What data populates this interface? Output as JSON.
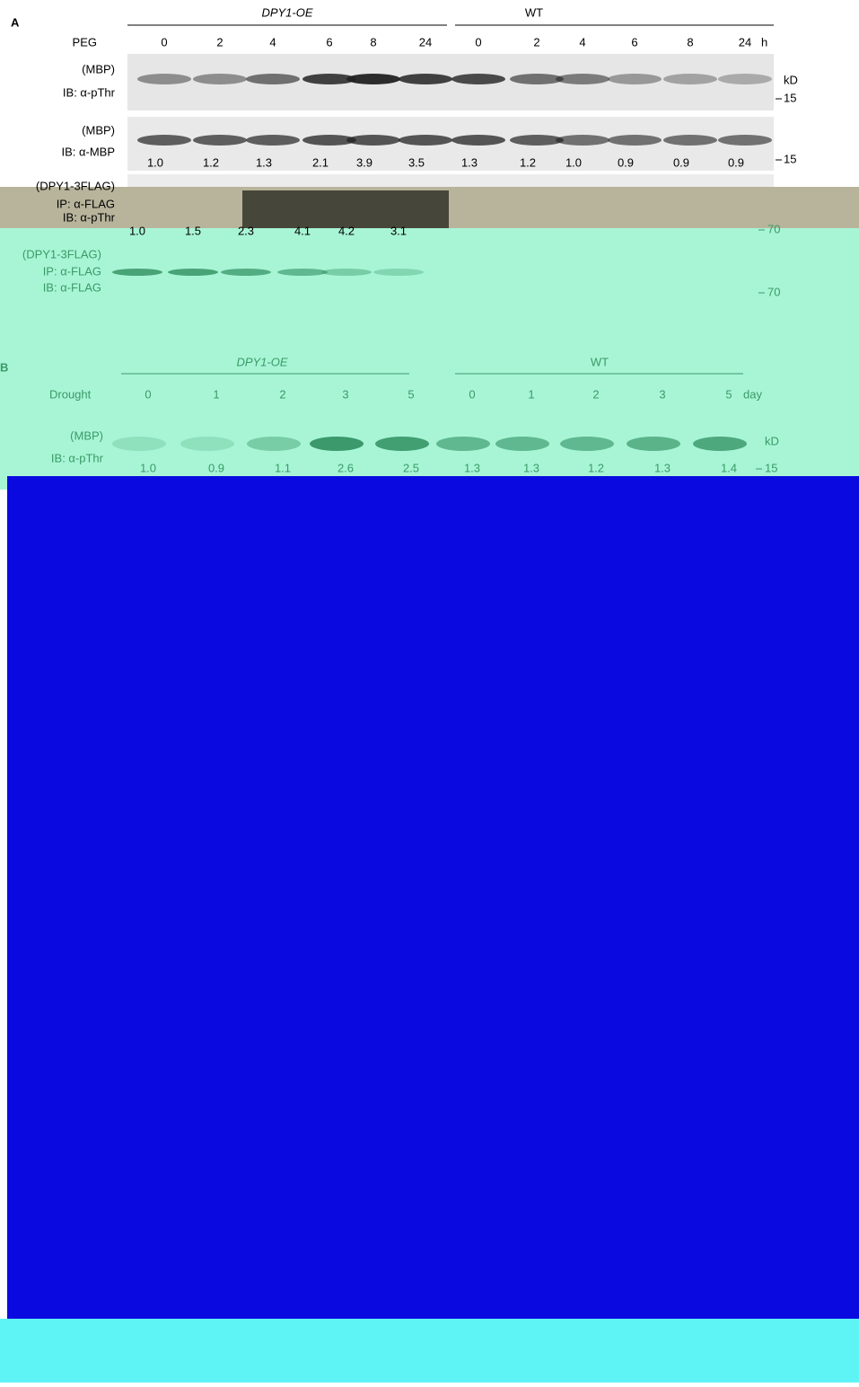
{
  "panel_a": {
    "label": "A",
    "groups": [
      "DPY1-OE",
      "WT"
    ],
    "row_label": "PEG",
    "time_points": [
      "0",
      "2",
      "4",
      "6",
      "8",
      "24",
      "0",
      "2",
      "4",
      "6",
      "8",
      "24"
    ],
    "time_unit": "h",
    "kd": "kD",
    "blots": [
      {
        "labels": [
          "(MBP)",
          "IB: α-pThr"
        ],
        "marker": "15",
        "values": []
      },
      {
        "labels": [
          "(MBP)",
          "IB: α-MBP"
        ],
        "marker": "15",
        "values": [
          "1.0",
          "1.2",
          "1.3",
          "2.1",
          "3.9",
          "3.5",
          "1.3",
          "1.2",
          "1.0",
          "0.9",
          "0.9",
          "0.9"
        ]
      },
      {
        "labels": [
          "(DPY1-3FLAG)",
          "IP: α-FLAG",
          "IB: α-pThr"
        ],
        "marker": "70",
        "values": [
          "1.0",
          "1.5",
          "2.3",
          "4.1",
          "4.2",
          "3.1"
        ]
      },
      {
        "labels": [
          "(DPY1-3FLAG)",
          "IP: α-FLAG",
          "IB: α-FLAG"
        ],
        "marker": "70",
        "values": []
      }
    ]
  },
  "panel_b": {
    "label": "B",
    "groups": [
      "DPY1-OE",
      "WT"
    ],
    "row_label": "Drought",
    "time_points": [
      "0",
      "1",
      "2",
      "3",
      "5",
      "0",
      "1",
      "2",
      "3",
      "5"
    ],
    "time_unit": "day",
    "kd": "kD",
    "blots": [
      {
        "labels": [
          "(MBP)",
          "IB: α-pThr"
        ],
        "marker": "15",
        "values": [
          "1.0",
          "0.9",
          "1.1",
          "2.6",
          "2.5",
          "1.3",
          "1.3",
          "1.2",
          "1.3",
          "1.4"
        ]
      }
    ]
  }
}
